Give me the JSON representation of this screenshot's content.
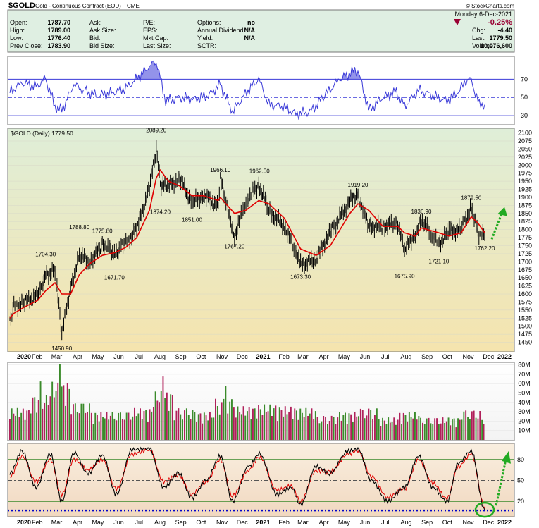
{
  "header": {
    "symbol": "$GOLD",
    "name": "Gold - Continuous Contract (EOD)",
    "exchange": "CME",
    "watermark": "© StockCharts.com",
    "date": "Monday  6-Dec-2021",
    "change_pct": "-0.25%",
    "fields": [
      {
        "label": "Open:",
        "value": "1787.70"
      },
      {
        "label": "High:",
        "value": "1789.00"
      },
      {
        "label": "Low:",
        "value": "1776.40"
      },
      {
        "label": "Prev Close:",
        "value": "1783.90"
      },
      {
        "label": "Ask:",
        "value": ""
      },
      {
        "label": "Ask Size:",
        "value": ""
      },
      {
        "label": "Bid:",
        "value": ""
      },
      {
        "label": "Bid Size:",
        "value": ""
      },
      {
        "label": "P/E:",
        "value": ""
      },
      {
        "label": "EPS:",
        "value": ""
      },
      {
        "label": "Mkt Cap:",
        "value": ""
      },
      {
        "label": "Last Size:",
        "value": ""
      },
      {
        "label": "Options:",
        "value": "no"
      },
      {
        "label": "Annual Dividend:",
        "value": "N/A"
      },
      {
        "label": "Yield:",
        "value": "N/A"
      },
      {
        "label": "SCTR:",
        "value": ""
      },
      {
        "label": "Chg:",
        "value": "-4.40"
      },
      {
        "label": "Last:",
        "value": "1779.50"
      },
      {
        "label": "Volume:",
        "value": "10,076,600"
      }
    ]
  },
  "colors": {
    "price_bar": "#000000",
    "moving_average": "#e00000",
    "rsi_line": "#3a3ad8",
    "volume_up": "#3a8a2a",
    "volume_down": "#b0205a",
    "stoch_k": "#000000",
    "stoch_d": "#e00000",
    "arrow": "#22aa22",
    "circle": "#22aa22",
    "dotted_line": "#0000cc",
    "header_bg": "#dfefe2",
    "price_bg_top": "#dfeed8",
    "price_bg_bottom": "#f4e4b0",
    "down_arrow": "#990033"
  },
  "chart_data": [
    {
      "type": "line",
      "panel": "rsi",
      "yticks": [
        30,
        50,
        70
      ],
      "ylim": [
        20,
        95
      ],
      "reference_lines": [
        30,
        50,
        70
      ],
      "x": [
        "2020-01-02",
        "2020-01-20",
        "2020-02-10",
        "2020-02-24",
        "2020-03-09",
        "2020-03-19",
        "2020-04-06",
        "2020-04-20",
        "2020-05-11",
        "2020-06-01",
        "2020-06-22",
        "2020-07-13",
        "2020-07-27",
        "2020-08-06",
        "2020-08-20",
        "2020-09-10",
        "2020-10-01",
        "2020-10-22",
        "2020-11-09",
        "2020-11-27",
        "2020-12-18",
        "2021-01-05",
        "2021-01-20",
        "2021-02-10",
        "2021-03-01",
        "2021-03-22",
        "2021-04-15",
        "2021-05-05",
        "2021-05-25",
        "2021-06-01",
        "2021-06-17",
        "2021-07-08",
        "2021-07-28",
        "2021-08-09",
        "2021-08-30",
        "2021-09-20",
        "2021-10-11",
        "2021-10-28",
        "2021-11-08",
        "2021-11-16",
        "2021-11-26",
        "2021-12-06"
      ],
      "y": [
        56,
        66,
        62,
        70,
        40,
        36,
        64,
        58,
        52,
        55,
        60,
        74,
        84,
        90,
        46,
        50,
        48,
        52,
        64,
        34,
        56,
        70,
        42,
        40,
        32,
        34,
        54,
        70,
        78,
        80,
        36,
        50,
        56,
        40,
        58,
        52,
        46,
        56,
        68,
        70,
        44,
        42
      ]
    },
    {
      "type": "bar",
      "panel": "price",
      "title": "$GOLD (Daily) 1779.50",
      "ylim": [
        1425,
        2110
      ],
      "yticks": [
        1450,
        1475,
        1500,
        1525,
        1550,
        1575,
        1600,
        1625,
        1650,
        1675,
        1700,
        1725,
        1750,
        1775,
        1800,
        1825,
        1850,
        1875,
        1900,
        1925,
        1950,
        1975,
        2000,
        2025,
        2050,
        2075,
        2100
      ],
      "x": [
        "2020-01-02",
        "2020-01-08",
        "2020-01-24",
        "2020-02-12",
        "2020-02-24",
        "2020-03-09",
        "2020-03-19",
        "2020-04-01",
        "2020-04-14",
        "2020-04-30",
        "2020-05-18",
        "2020-06-05",
        "2020-06-22",
        "2020-07-08",
        "2020-07-27",
        "2020-08-06",
        "2020-08-12",
        "2020-08-24",
        "2020-09-10",
        "2020-09-28",
        "2020-10-15",
        "2020-11-06",
        "2020-11-09",
        "2020-11-30",
        "2020-12-17",
        "2021-01-05",
        "2021-01-20",
        "2021-02-12",
        "2021-03-08",
        "2021-03-31",
        "2021-04-21",
        "2021-05-20",
        "2021-06-01",
        "2021-06-17",
        "2021-07-08",
        "2021-07-30",
        "2021-08-09",
        "2021-08-25",
        "2021-09-03",
        "2021-09-29",
        "2021-10-14",
        "2021-11-01",
        "2021-11-16",
        "2021-11-26",
        "2021-12-06"
      ],
      "y": [
        1520,
        1560,
        1575,
        1595,
        1660,
        1675,
        1475,
        1620,
        1720,
        1700,
        1755,
        1725,
        1760,
        1800,
        1930,
        2050,
        1940,
        1935,
        1960,
        1880,
        1910,
        1870,
        1960,
        1780,
        1890,
        1940,
        1860,
        1810,
        1690,
        1710,
        1790,
        1890,
        1910,
        1810,
        1810,
        1820,
        1735,
        1790,
        1830,
        1755,
        1795,
        1800,
        1870,
        1790,
        1779.5
      ],
      "moving_average": [
        1525,
        1540,
        1560,
        1580,
        1610,
        1635,
        1600,
        1600,
        1660,
        1695,
        1720,
        1728,
        1745,
        1775,
        1860,
        1960,
        1985,
        1950,
        1935,
        1905,
        1905,
        1890,
        1900,
        1850,
        1860,
        1890,
        1880,
        1835,
        1740,
        1720,
        1750,
        1850,
        1880,
        1860,
        1810,
        1810,
        1790,
        1780,
        1805,
        1790,
        1780,
        1790,
        1840,
        1820,
        1790
      ],
      "annotations": [
        {
          "label": "2089.20",
          "x": "2020-08-06",
          "value": 2089.2
        },
        {
          "label": "1966.10",
          "x": "2020-11-09",
          "value": 1966.1
        },
        {
          "label": "1962.50",
          "x": "2021-01-06",
          "value": 1962.5
        },
        {
          "label": "1919.20",
          "x": "2021-06-01",
          "value": 1919.2
        },
        {
          "label": "1879.50",
          "x": "2021-11-16",
          "value": 1879.5
        },
        {
          "label": "1836.90",
          "x": "2021-09-03",
          "value": 1836.9
        },
        {
          "label": "1874.20",
          "x": "2020-08-12",
          "value": 1874.2
        },
        {
          "label": "1851.00",
          "x": "2020-09-28",
          "value": 1851
        },
        {
          "label": "1767.20",
          "x": "2020-11-30",
          "value": 1767.2
        },
        {
          "label": "1788.80",
          "x": "2020-04-14",
          "value": 1788.8
        },
        {
          "label": "1775.80",
          "x": "2020-05-18",
          "value": 1775.8
        },
        {
          "label": "1704.30",
          "x": "2020-02-24",
          "value": 1704.3
        },
        {
          "label": "1671.70",
          "x": "2020-06-05",
          "value": 1671.7
        },
        {
          "label": "1450.90",
          "x": "2020-03-19",
          "value": 1450.9
        },
        {
          "label": "1673.30",
          "x": "2021-03-08",
          "value": 1673.3
        },
        {
          "label": "1675.90",
          "x": "2021-08-09",
          "value": 1675.9
        },
        {
          "label": "1721.10",
          "x": "2021-09-29",
          "value": 1721.1
        },
        {
          "label": "1762.20",
          "x": "2021-12-06",
          "value": 1762.2
        }
      ]
    },
    {
      "type": "bar",
      "panel": "volume",
      "ylim": [
        0,
        82
      ],
      "yticks": [
        "10M",
        "20M",
        "30M",
        "40M",
        "50M",
        "60M",
        "70M",
        "80M"
      ],
      "ytick_values": [
        10,
        20,
        30,
        40,
        50,
        60,
        70,
        80
      ],
      "x": [
        "2020-01",
        "2020-02",
        "2020-03",
        "2020-04",
        "2020-05",
        "2020-06",
        "2020-07",
        "2020-08",
        "2020-09",
        "2020-10",
        "2020-11",
        "2020-12",
        "2021-01",
        "2021-02",
        "2021-03",
        "2021-04",
        "2021-05",
        "2021-06",
        "2021-07",
        "2021-08",
        "2021-09",
        "2021-10",
        "2021-11",
        "2021-12"
      ],
      "y": [
        34,
        48,
        62,
        40,
        30,
        30,
        34,
        52,
        34,
        30,
        44,
        36,
        38,
        36,
        34,
        26,
        30,
        34,
        24,
        30,
        24,
        24,
        32,
        22
      ]
    },
    {
      "type": "line",
      "panel": "stochastic",
      "yticks": [
        20,
        50,
        80
      ],
      "ylim": [
        0,
        100
      ],
      "reference_lines": [
        20,
        50,
        80
      ],
      "x": [
        "2020-01-02",
        "2020-01-20",
        "2020-02-10",
        "2020-03-02",
        "2020-03-19",
        "2020-04-06",
        "2020-04-27",
        "2020-05-18",
        "2020-06-08",
        "2020-07-01",
        "2020-07-27",
        "2020-08-17",
        "2020-09-08",
        "2020-09-28",
        "2020-10-19",
        "2020-11-09",
        "2020-11-27",
        "2020-12-21",
        "2021-01-06",
        "2021-02-01",
        "2021-02-22",
        "2021-03-08",
        "2021-03-31",
        "2021-04-20",
        "2021-05-18",
        "2021-06-01",
        "2021-06-21",
        "2021-07-15",
        "2021-08-09",
        "2021-08-30",
        "2021-09-20",
        "2021-10-11",
        "2021-10-28",
        "2021-11-16",
        "2021-12-06"
      ],
      "y": [
        60,
        92,
        40,
        88,
        20,
        90,
        60,
        86,
        30,
        94,
        96,
        40,
        60,
        25,
        50,
        85,
        20,
        70,
        88,
        30,
        40,
        15,
        70,
        60,
        92,
        95,
        50,
        20,
        40,
        85,
        40,
        20,
        75,
        92,
        8
      ],
      "d_line": [
        55,
        85,
        48,
        80,
        30,
        80,
        65,
        80,
        38,
        88,
        94,
        48,
        58,
        30,
        48,
        80,
        28,
        65,
        84,
        36,
        42,
        20,
        64,
        62,
        88,
        93,
        56,
        26,
        38,
        80,
        46,
        24,
        70,
        88,
        12
      ]
    }
  ],
  "x_axis_labels": [
    "2020",
    "Feb",
    "Mar",
    "Apr",
    "May",
    "Jun",
    "Jul",
    "Aug",
    "Sep",
    "Oct",
    "Nov",
    "Dec",
    "2021",
    "Feb",
    "Mar",
    "Apr",
    "May",
    "Jun",
    "Jul",
    "Aug",
    "Sep",
    "Oct",
    "Nov",
    "Dec",
    "2022"
  ]
}
